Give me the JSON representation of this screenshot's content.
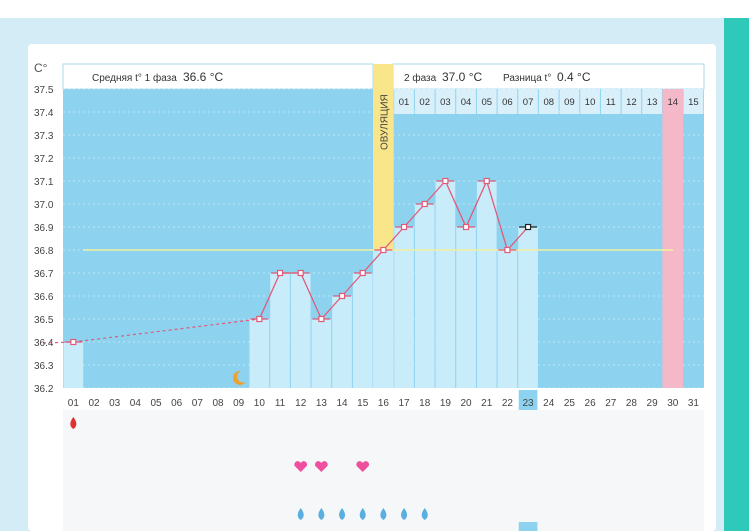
{
  "header": {
    "unit": "C°",
    "phase1_label": "Средняя t° 1 фаза",
    "phase1_value": "36.6 °C",
    "phase2_label": "2 фаза",
    "phase2_value": "37.0 °C",
    "diff_label": "Разница t°",
    "diff_value": "0.4 °C"
  },
  "colors": {
    "accent": "#2ec9b8",
    "plot_bg": "#8dd3ef",
    "bar": "#c9ecfb",
    "ovulation": "#f9e58a",
    "period": "#f5b8c8",
    "line": "#e05a78",
    "coverline": "#f3f0a0",
    "current_day": "#8dd3ef"
  },
  "chart_data": {
    "type": "line",
    "title": "",
    "xlabel": "",
    "ylabel": "C°",
    "ylim": [
      36.2,
      37.5
    ],
    "y_ticks": [
      "36.2",
      "36.3",
      "36.4",
      "36.5",
      "36.6",
      "36.7",
      "36.8",
      "36.9",
      "37.0",
      "37.1",
      "37.2",
      "37.3",
      "37.4",
      "37.5"
    ],
    "x_days": [
      "01",
      "02",
      "03",
      "04",
      "05",
      "06",
      "07",
      "08",
      "09",
      "10",
      "11",
      "12",
      "13",
      "14",
      "15",
      "16",
      "17",
      "18",
      "19",
      "20",
      "21",
      "22",
      "23",
      "24",
      "25",
      "26",
      "27",
      "28",
      "29",
      "30",
      "31"
    ],
    "phase2_days": [
      "01",
      "02",
      "03",
      "04",
      "05",
      "06",
      "07",
      "08",
      "09",
      "10",
      "11",
      "12",
      "13",
      "14",
      "15"
    ],
    "series": [
      {
        "x": [
          1,
          10,
          11,
          12,
          13,
          14,
          15,
          16,
          17,
          18,
          19,
          20,
          21,
          22,
          23
        ],
        "y": [
          36.4,
          36.5,
          36.7,
          36.7,
          36.5,
          36.6,
          36.7,
          36.8,
          36.9,
          37.0,
          37.1,
          36.9,
          37.1,
          36.8,
          36.9
        ]
      }
    ],
    "dashed_segment": [
      1,
      10
    ],
    "coverline": 36.8,
    "ovulation_day": 16,
    "ovulation_label": "ОВУЛЯЦИЯ",
    "period_expected_day": 30,
    "current_day": 23,
    "moon_day": 9,
    "notes": {
      "blood_drop_days": [
        1
      ],
      "heart_days": [
        12,
        13,
        15
      ],
      "water_drop_days": [
        12,
        13,
        14,
        15,
        16,
        17,
        18
      ]
    }
  }
}
